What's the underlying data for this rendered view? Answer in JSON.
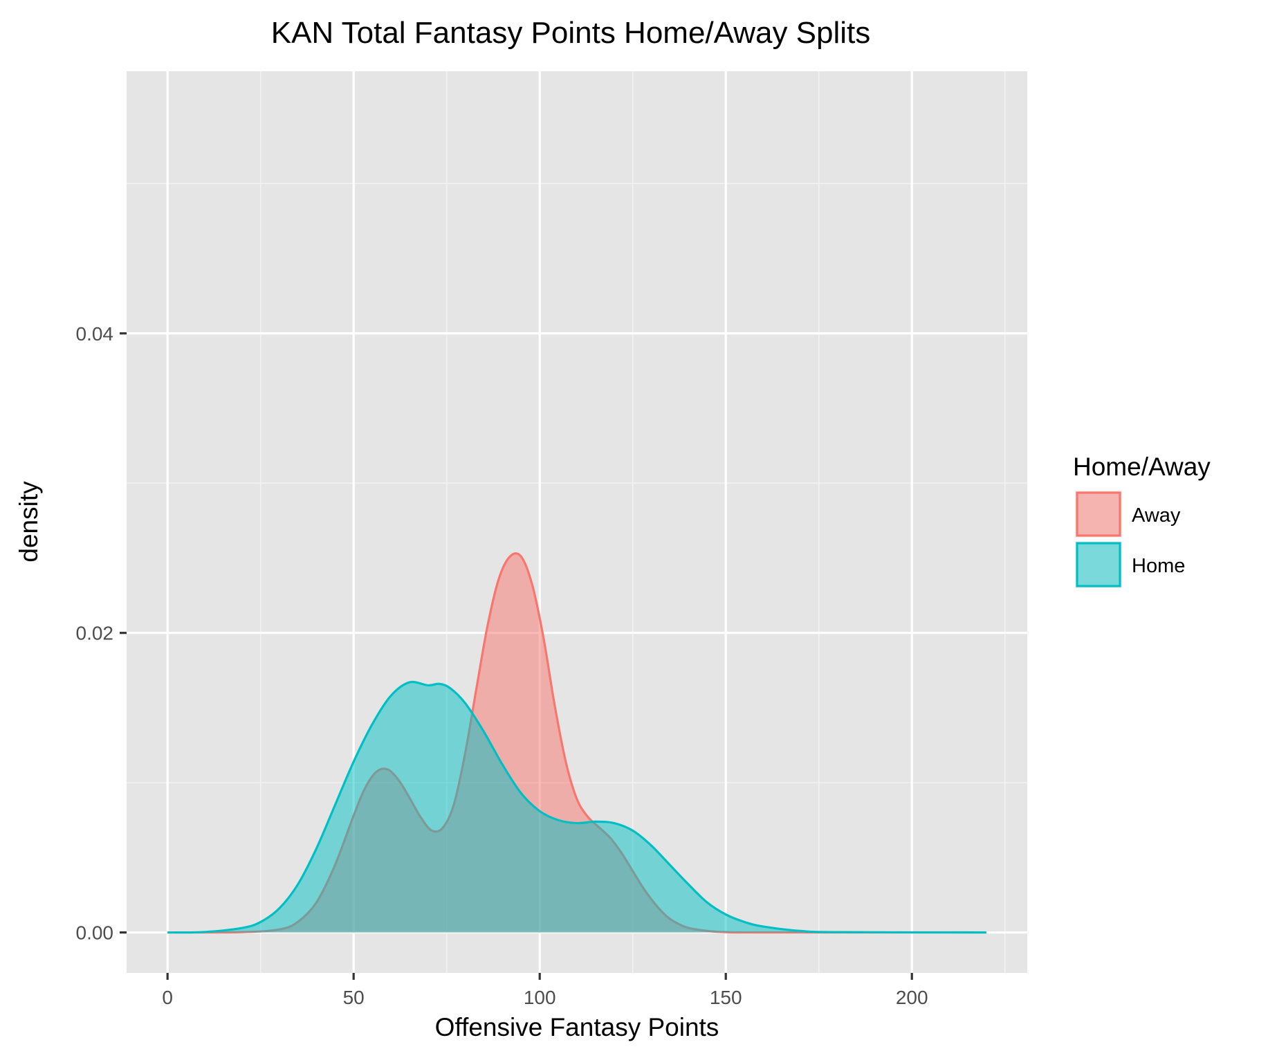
{
  "chart_data": {
    "type": "area",
    "title": "KAN Total Fantasy Points Home/Away Splits",
    "xlabel": "Offensive Fantasy Points",
    "ylabel": "density",
    "xlim": [
      -11,
      231
    ],
    "ylim": [
      -0.0027,
      0.0575
    ],
    "x_ticks": [
      0,
      50,
      100,
      150,
      200
    ],
    "x_tick_labels": [
      "0",
      "50",
      "100",
      "150",
      "200"
    ],
    "x_minor_ticks": [
      25,
      75,
      125,
      175,
      225
    ],
    "y_ticks": [
      0,
      0.02,
      0.04
    ],
    "y_tick_labels": [
      "0.00",
      "0.02",
      "0.04"
    ],
    "y_minor_ticks": [
      0.01,
      0.03,
      0.05
    ],
    "grid": true,
    "legend": {
      "title": "Home/Away",
      "position": "right",
      "entries": [
        "Away",
        "Home"
      ]
    },
    "series": [
      {
        "name": "Away",
        "stroke": "#F8766D",
        "fill": "#F8766D",
        "x": [
          0,
          20,
          30,
          35,
          40,
          45,
          50,
          53,
          56,
          59,
          62,
          65,
          68,
          71,
          74,
          77,
          80,
          83,
          86,
          89,
          92,
          95,
          98,
          101,
          104,
          107,
          110,
          113,
          116,
          119,
          122,
          125,
          128,
          131,
          134,
          137,
          140,
          145,
          150,
          160,
          220
        ],
        "y": [
          0,
          2e-05,
          0.0002,
          0.0007,
          0.002,
          0.0045,
          0.0078,
          0.0096,
          0.0107,
          0.0109,
          0.0102,
          0.009,
          0.0077,
          0.0068,
          0.007,
          0.0086,
          0.012,
          0.0163,
          0.0205,
          0.0236,
          0.0251,
          0.0251,
          0.0232,
          0.0197,
          0.0152,
          0.0114,
          0.0089,
          0.0077,
          0.007,
          0.0063,
          0.0053,
          0.0041,
          0.0029,
          0.0019,
          0.0011,
          0.0006,
          0.0003,
          0.0001,
          2e-05,
          0,
          0
        ]
      },
      {
        "name": "Home",
        "stroke": "#00BFC4",
        "fill": "#00BFC4",
        "x": [
          0,
          10,
          20,
          25,
          30,
          35,
          40,
          45,
          50,
          55,
          60,
          65,
          70,
          73,
          76,
          80,
          85,
          90,
          95,
          100,
          105,
          110,
          115,
          120,
          125,
          130,
          135,
          140,
          145,
          150,
          155,
          160,
          170,
          180,
          220
        ],
        "y": [
          0,
          3e-05,
          0.0003,
          0.0007,
          0.0016,
          0.0032,
          0.0056,
          0.0085,
          0.0114,
          0.0139,
          0.0158,
          0.0167,
          0.0165,
          0.0166,
          0.0163,
          0.0153,
          0.0134,
          0.0112,
          0.0093,
          0.0081,
          0.0075,
          0.0073,
          0.0074,
          0.0073,
          0.0068,
          0.0058,
          0.0045,
          0.0032,
          0.002,
          0.0012,
          0.0007,
          0.0004,
          0.0001,
          2e-05,
          0
        ]
      }
    ]
  }
}
